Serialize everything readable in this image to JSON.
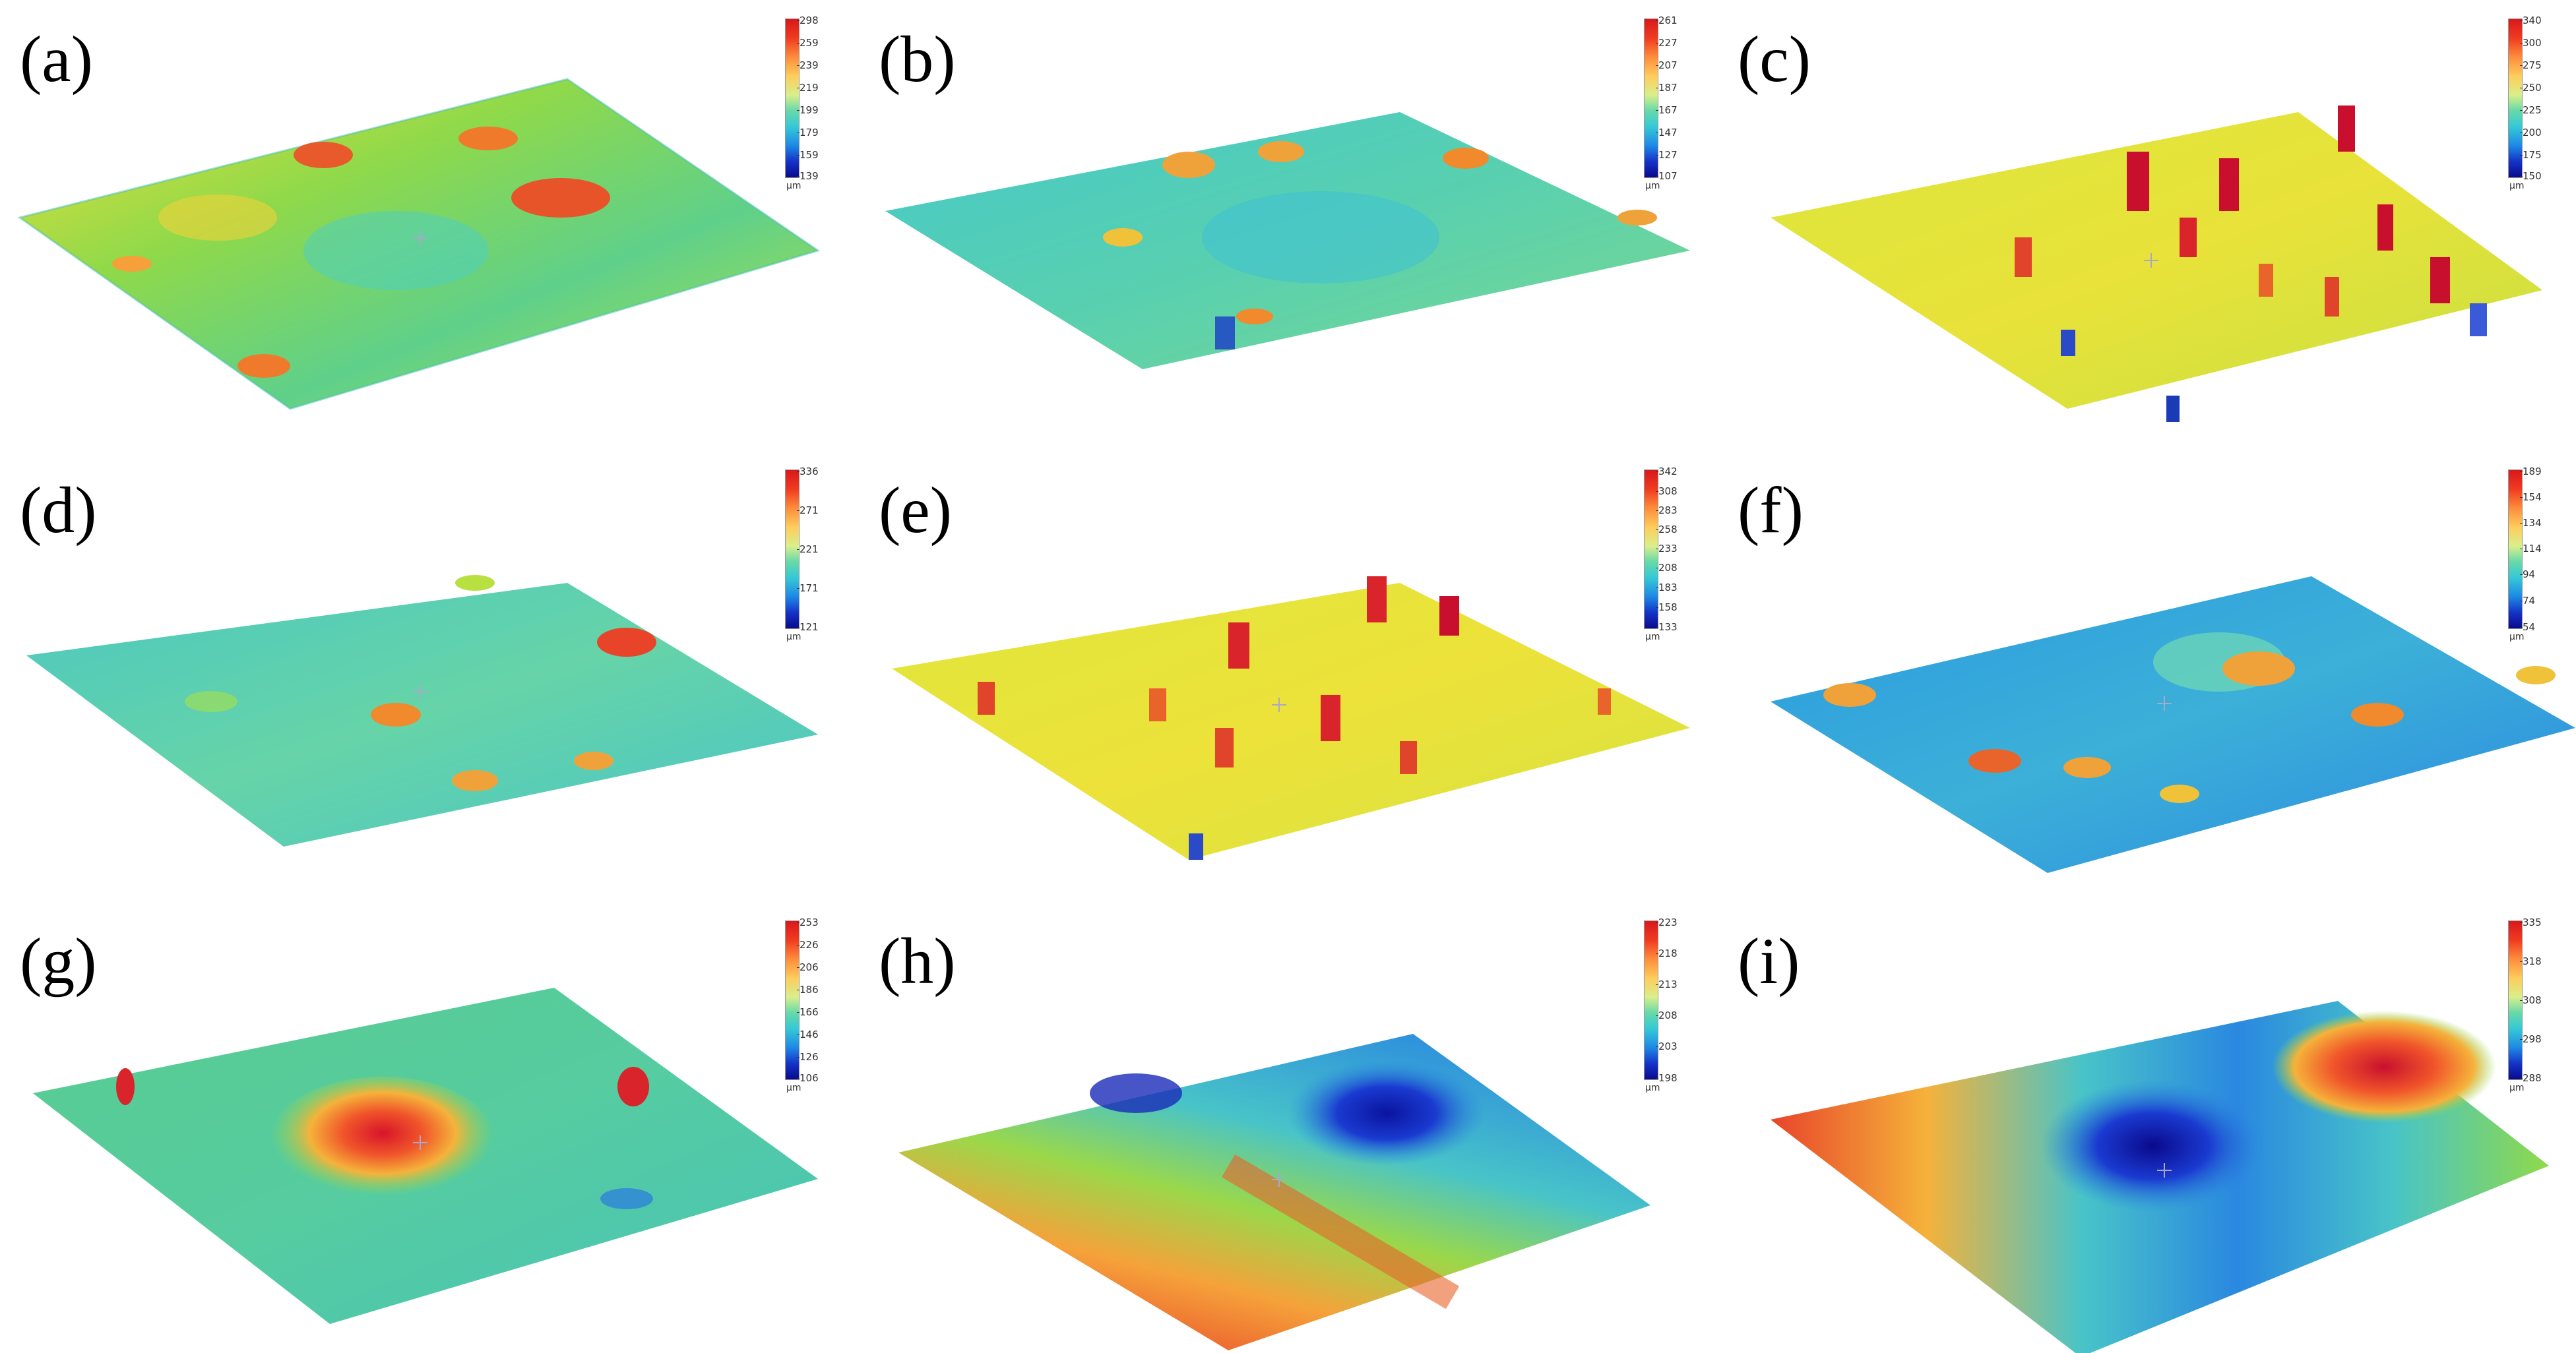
{
  "figure": {
    "unit": "µm",
    "panels": [
      {
        "label": "(a)",
        "ticks": [
          "298",
          "259",
          "239",
          "219",
          "199",
          "179",
          "159",
          "139"
        ]
      },
      {
        "label": "(b)",
        "ticks": [
          "261",
          "227",
          "207",
          "187",
          "167",
          "147",
          "127",
          "107"
        ]
      },
      {
        "label": "(c)",
        "ticks": [
          "340",
          "300",
          "275",
          "250",
          "225",
          "200",
          "175",
          "150"
        ]
      },
      {
        "label": "(d)",
        "ticks": [
          "336",
          "271",
          "221",
          "171",
          "121"
        ]
      },
      {
        "label": "(e)",
        "ticks": [
          "342",
          "308",
          "283",
          "258",
          "233",
          "208",
          "183",
          "158",
          "133"
        ]
      },
      {
        "label": "(f)",
        "ticks": [
          "189",
          "154",
          "134",
          "114",
          "94",
          "74",
          "54"
        ]
      },
      {
        "label": "(g)",
        "ticks": [
          "253",
          "226",
          "206",
          "186",
          "166",
          "146",
          "126",
          "106"
        ]
      },
      {
        "label": "(h)",
        "ticks": [
          "223",
          "218",
          "213",
          "208",
          "203",
          "198"
        ]
      },
      {
        "label": "(i)",
        "ticks": [
          "335",
          "318",
          "308",
          "298",
          "288"
        ]
      }
    ]
  },
  "colors": {
    "red": "#e0241b",
    "orange": "#f5892a",
    "yellow": "#e8e63a",
    "green": "#8fd94a",
    "cyan": "#35c9c9",
    "blue": "#1e78d8",
    "navy": "#0a1a9c"
  }
}
